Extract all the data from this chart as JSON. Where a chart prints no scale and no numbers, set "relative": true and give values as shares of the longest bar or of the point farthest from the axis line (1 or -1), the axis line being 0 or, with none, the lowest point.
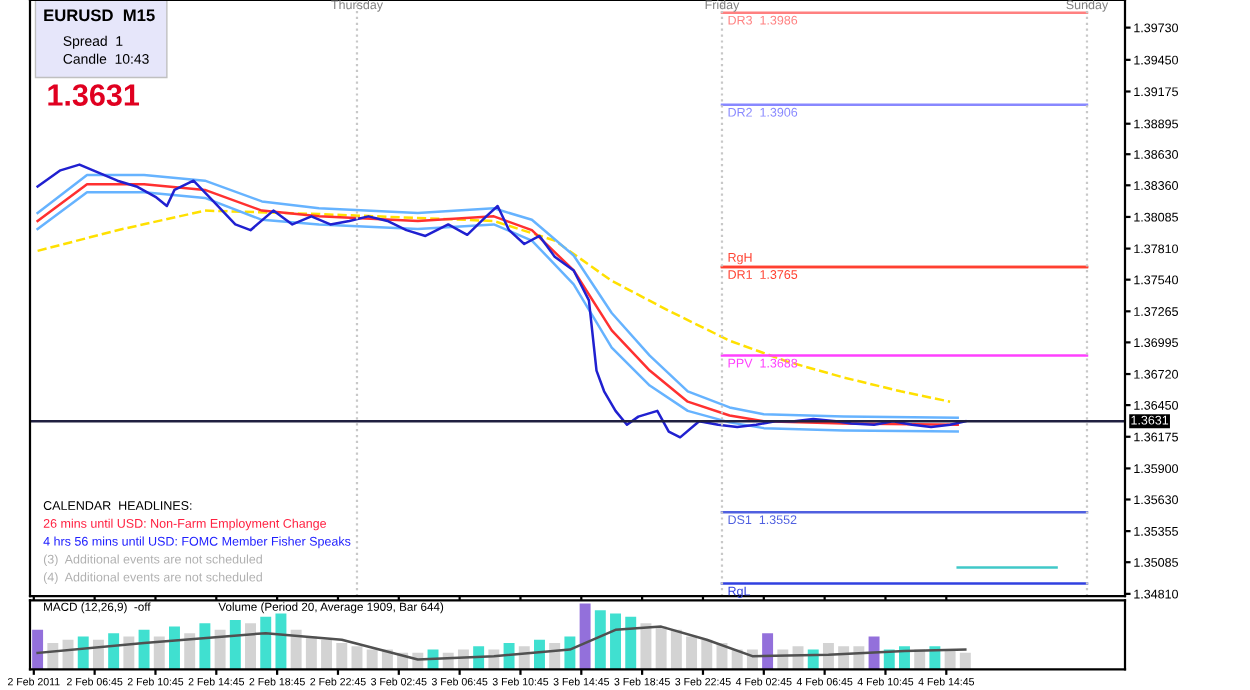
{
  "chart_data": [
    {
      "type": "line",
      "title": "EURUSD  M15",
      "annotations": [
        "Spread  1",
        "Candle  10:43",
        "1.3631",
        "CALENDAR  HEADLINES:",
        "26 mins until USD: Non-Farm Employment Change",
        "4 hrs 56 mins until USD: FOMC Member Fisher Speaks",
        "(3)  Additional events are not scheduled",
        "(4)  Additional events are not scheduled"
      ],
      "xlim": [
        "2011-02-02T02:30",
        "2011-02-05T02:30"
      ],
      "ylim": [
        1.3479,
        1.3997
      ],
      "tick_labels": "y",
      "grid": false,
      "legend": false,
      "xticks": [
        {
          "value": "2011-02-02T02:45",
          "label": null
        },
        {
          "value": "2011-02-02T06:45",
          "label": null
        },
        {
          "value": "2011-02-02T10:45",
          "label": null
        },
        {
          "value": "2011-02-02T14:45",
          "label": null
        },
        {
          "value": "2011-02-02T18:45",
          "label": null
        },
        {
          "value": "2011-02-02T22:45",
          "label": null
        },
        {
          "value": "2011-02-03T02:45",
          "label": null
        },
        {
          "value": "2011-02-03T06:45",
          "label": null
        },
        {
          "value": "2011-02-03T10:45",
          "label": null
        },
        {
          "value": "2011-02-03T14:45",
          "label": null
        },
        {
          "value": "2011-02-03T18:45",
          "label": null
        },
        {
          "value": "2011-02-03T22:45",
          "label": null
        },
        {
          "value": "2011-02-04T02:45",
          "label": null
        },
        {
          "value": "2011-02-04T06:45",
          "label": null
        },
        {
          "value": "2011-02-04T10:45",
          "label": null
        },
        {
          "value": "2011-02-04T14:45",
          "label": null
        }
      ],
      "yticks": [
        {
          "value": 1.3973,
          "label": "1.39730"
        },
        {
          "value": 1.3945,
          "label": "1.39450"
        },
        {
          "value": 1.39175,
          "label": "1.39175"
        },
        {
          "value": 1.38895,
          "label": "1.38895"
        },
        {
          "value": 1.3863,
          "label": "1.38630"
        },
        {
          "value": 1.3836,
          "label": "1.38360"
        },
        {
          "value": 1.38085,
          "label": "1.38085"
        },
        {
          "value": 1.3781,
          "label": "1.37810"
        },
        {
          "value": 1.3754,
          "label": "1.37540"
        },
        {
          "value": 1.37265,
          "label": "1.37265"
        },
        {
          "value": 1.36995,
          "label": "1.36995"
        },
        {
          "value": 1.3672,
          "label": "1.36720"
        },
        {
          "value": 1.3645,
          "label": "1.36450"
        },
        {
          "value": 1.36175,
          "label": "1.36175"
        },
        {
          "value": 1.359,
          "label": "1.35900"
        },
        {
          "value": 1.3563,
          "label": "1.35630"
        },
        {
          "value": 1.35355,
          "label": "1.35355"
        },
        {
          "value": 1.35085,
          "label": "1.35085"
        },
        {
          "value": 1.3481,
          "label": "1.34810"
        }
      ],
      "ref_lines": [
        {
          "axis": "x",
          "value": "2011-02-03T00:00",
          "label": "Thursday",
          "color": "#c8c8c8",
          "line_style": "dotted"
        },
        {
          "axis": "x",
          "value": "2011-02-04T00:00",
          "label": "Friday",
          "color": "#c8c8c8",
          "line_style": "dotted"
        },
        {
          "axis": "x",
          "value": "2011-02-05T00:00",
          "label": "Sunday",
          "color": "#c8c8c8",
          "line_style": "dotted"
        },
        {
          "axis": "y",
          "value": 1.3631,
          "label": "1.3631",
          "color": "#202040",
          "line_style": "solid"
        }
      ],
      "series": [
        {
          "color": "#ffe000",
          "line_style": "dashed",
          "x": [
            "2011-02-02T03:00",
            "2011-02-02T08:15",
            "2011-02-02T14:00",
            "2011-02-02T21:30",
            "2011-02-03T09:00",
            "2011-02-03T13:00",
            "2011-02-03T16:45",
            "2011-02-03T20:30",
            "2011-02-04T00:30",
            "2011-02-04T04:15",
            "2011-02-04T08:00",
            "2011-02-04T11:45",
            "2011-02-04T15:00"
          ],
          "values": [
            1.3779,
            1.3797,
            1.3814,
            1.3811,
            1.3805,
            1.3788,
            1.3753,
            1.3727,
            1.3701,
            1.3683,
            1.3669,
            1.3657,
            1.3648
          ]
        },
        {
          "color": "#66b3ff",
          "x": [
            "2011-02-02T03:00",
            "2011-02-02T06:15",
            "2011-02-02T10:00",
            "2011-02-02T14:00",
            "2011-02-02T17:45",
            "2011-02-02T21:30",
            "2011-02-03T04:00",
            "2011-02-03T09:00",
            "2011-02-03T11:30",
            "2011-02-03T14:15",
            "2011-02-03T16:45",
            "2011-02-03T19:15",
            "2011-02-03T21:45",
            "2011-02-04T00:30",
            "2011-02-04T02:45",
            "2011-02-04T08:00",
            "2011-02-04T15:30"
          ],
          "values": [
            1.3812,
            1.3845,
            1.3845,
            1.384,
            1.3822,
            1.3816,
            1.3812,
            1.3816,
            1.3806,
            1.3775,
            1.3725,
            1.3688,
            1.3657,
            1.3643,
            1.3637,
            1.3635,
            1.3634
          ]
        },
        {
          "color": "#66b3ff",
          "x": [
            "2011-02-02T03:00",
            "2011-02-02T06:15",
            "2011-02-02T10:00",
            "2011-02-02T14:00",
            "2011-02-02T17:45",
            "2011-02-02T21:30",
            "2011-02-03T04:00",
            "2011-02-03T09:00",
            "2011-02-03T11:30",
            "2011-02-03T14:15",
            "2011-02-03T16:45",
            "2011-02-03T19:15",
            "2011-02-03T21:45",
            "2011-02-04T00:30",
            "2011-02-04T02:45",
            "2011-02-04T08:00",
            "2011-02-04T15:30"
          ],
          "values": [
            1.3798,
            1.383,
            1.383,
            1.3825,
            1.3806,
            1.3802,
            1.3798,
            1.3802,
            1.3788,
            1.375,
            1.3695,
            1.3662,
            1.364,
            1.363,
            1.3625,
            1.3623,
            1.3622
          ]
        },
        {
          "color": "#ff3030",
          "x": [
            "2011-02-02T03:00",
            "2011-02-02T06:15",
            "2011-02-02T10:00",
            "2011-02-02T14:00",
            "2011-02-02T17:45",
            "2011-02-02T21:30",
            "2011-02-03T04:00",
            "2011-02-03T09:00",
            "2011-02-03T11:30",
            "2011-02-03T14:15",
            "2011-02-03T16:45",
            "2011-02-03T19:15",
            "2011-02-03T21:45",
            "2011-02-04T00:30",
            "2011-02-04T02:45",
            "2011-02-04T08:00",
            "2011-02-04T15:30"
          ],
          "values": [
            1.3805,
            1.3837,
            1.3837,
            1.3832,
            1.3814,
            1.3809,
            1.3805,
            1.3809,
            1.3797,
            1.3762,
            1.371,
            1.3675,
            1.3648,
            1.3636,
            1.3631,
            1.3629,
            1.3628
          ]
        },
        {
          "color": "#2020d0",
          "x": [
            "2011-02-02T03:00",
            "2011-02-02T04:30",
            "2011-02-02T05:45",
            "2011-02-02T07:00",
            "2011-02-02T08:15",
            "2011-02-02T09:30",
            "2011-02-02T10:45",
            "2011-02-02T11:30",
            "2011-02-02T12:00",
            "2011-02-02T13:15",
            "2011-02-02T14:30",
            "2011-02-02T16:00",
            "2011-02-02T17:00",
            "2011-02-02T18:30",
            "2011-02-02T19:45",
            "2011-02-02T21:00",
            "2011-02-02T22:15",
            "2011-02-02T23:30",
            "2011-02-03T00:45",
            "2011-02-03T02:00",
            "2011-02-03T03:15",
            "2011-02-03T04:30",
            "2011-02-03T06:00",
            "2011-02-03T07:15",
            "2011-02-03T08:30",
            "2011-02-03T09:15",
            "2011-02-03T10:00",
            "2011-02-03T11:00",
            "2011-02-03T12:00",
            "2011-02-03T13:00",
            "2011-02-03T14:15",
            "2011-02-03T15:15",
            "2011-02-03T15:45",
            "2011-02-03T16:15",
            "2011-02-03T17:00",
            "2011-02-03T17:45",
            "2011-02-03T18:30",
            "2011-02-03T19:45",
            "2011-02-03T20:30",
            "2011-02-03T21:15",
            "2011-02-03T22:30",
            "2011-02-03T23:45",
            "2011-02-04T01:00",
            "2011-02-04T02:15",
            "2011-02-04T03:30",
            "2011-02-04T04:45",
            "2011-02-04T06:00",
            "2011-02-04T07:30",
            "2011-02-04T08:30",
            "2011-02-04T10:00",
            "2011-02-04T11:15",
            "2011-02-04T12:30",
            "2011-02-04T13:45",
            "2011-02-04T15:00",
            "2011-02-04T16:00"
          ],
          "values": [
            1.3835,
            1.3849,
            1.3854,
            1.3847,
            1.384,
            1.3835,
            1.3826,
            1.3818,
            1.3832,
            1.384,
            1.3823,
            1.3802,
            1.3797,
            1.3814,
            1.3802,
            1.3809,
            1.3802,
            1.3805,
            1.3809,
            1.3805,
            1.3797,
            1.3792,
            1.3802,
            1.3793,
            1.3809,
            1.3818,
            1.3797,
            1.3785,
            1.3792,
            1.3774,
            1.3762,
            1.3736,
            1.3675,
            1.3657,
            1.364,
            1.3628,
            1.3635,
            1.364,
            1.3622,
            1.3617,
            1.3631,
            1.3628,
            1.3626,
            1.3628,
            1.3631,
            1.3631,
            1.3633,
            1.3631,
            1.3629,
            1.3628,
            1.3631,
            1.3628,
            1.3626,
            1.3628,
            1.3631
          ]
        },
        {
          "name": "DR3  1.3986",
          "color": "#ff8080",
          "x": [
            "2011-02-04T00:00",
            "2011-02-05T00:00"
          ],
          "values": [
            1.3986,
            1.3986
          ]
        },
        {
          "name": "DR2  1.3906",
          "color": "#8888ff",
          "x": [
            "2011-02-04T00:00",
            "2011-02-05T00:00"
          ],
          "values": [
            1.3906,
            1.3906
          ]
        },
        {
          "name": "DR1  1.3765",
          "color": "#ff4030",
          "x": [
            "2011-02-04T00:00",
            "2011-02-05T00:00"
          ],
          "values": [
            1.3765,
            1.3765
          ]
        },
        {
          "name": "RgH",
          "color": "#ff4030",
          "x": [
            "2011-02-04T00:00",
            "2011-02-05T00:00"
          ],
          "values": [
            1.3765,
            1.3765
          ]
        },
        {
          "name": "PPV  1.3688",
          "color": "#ff40ff",
          "x": [
            "2011-02-04T00:00",
            "2011-02-05T00:00"
          ],
          "values": [
            1.3688,
            1.3688
          ]
        },
        {
          "name": "DS1  1.3552",
          "color": "#5060e0",
          "x": [
            "2011-02-04T00:00",
            "2011-02-05T00:00"
          ],
          "values": [
            1.3552,
            1.3552
          ]
        },
        {
          "color": "#40c8c8",
          "x": [
            "2011-02-04T15:30",
            "2011-02-04T22:00"
          ],
          "values": [
            1.3504,
            1.3504
          ]
        },
        {
          "name": "RgL",
          "color": "#3040e0",
          "x": [
            "2011-02-04T00:00",
            "2011-02-05T00:00"
          ],
          "values": [
            1.349,
            1.349
          ]
        }
      ]
    },
    {
      "type": "bar",
      "relative": true,
      "tick_labels": "x",
      "legend": false,
      "grid": false,
      "annotations": [
        "MACD (12,26,9)  -off",
        "Volume (Period 20, Average 1909, Bar 644)"
      ],
      "xlim": [
        "2011-02-02T02:30",
        "2011-02-05T02:30"
      ],
      "xticks": [
        {
          "value": "2011-02-02T02:45",
          "label": "2 Feb 2011"
        },
        {
          "value": "2011-02-02T06:45",
          "label": "2 Feb 06:45"
        },
        {
          "value": "2011-02-02T10:45",
          "label": "2 Feb 10:45"
        },
        {
          "value": "2011-02-02T14:45",
          "label": "2 Feb 14:45"
        },
        {
          "value": "2011-02-02T18:45",
          "label": "2 Feb 18:45"
        },
        {
          "value": "2011-02-02T22:45",
          "label": "2 Feb 22:45"
        },
        {
          "value": "2011-02-03T02:45",
          "label": "3 Feb 02:45"
        },
        {
          "value": "2011-02-03T06:45",
          "label": "3 Feb 06:45"
        },
        {
          "value": "2011-02-03T10:45",
          "label": "3 Feb 10:45"
        },
        {
          "value": "2011-02-03T14:45",
          "label": "3 Feb 14:45"
        },
        {
          "value": "2011-02-03T18:45",
          "label": "3 Feb 18:45"
        },
        {
          "value": "2011-02-03T22:45",
          "label": "3 Feb 22:45"
        },
        {
          "value": "2011-02-04T02:45",
          "label": "4 Feb 02:45"
        },
        {
          "value": "2011-02-04T06:45",
          "label": "4 Feb 06:45"
        },
        {
          "value": "2011-02-04T10:45",
          "label": "4 Feb 10:45"
        },
        {
          "value": "2011-02-04T14:45",
          "label": "4 Feb 14:45"
        }
      ],
      "series": [
        {
          "x": [
            "2011-02-02T03:00",
            "2011-02-02T04:00",
            "2011-02-02T05:00",
            "2011-02-02T06:00",
            "2011-02-02T07:00",
            "2011-02-02T08:00",
            "2011-02-02T09:00",
            "2011-02-02T10:00",
            "2011-02-02T11:00",
            "2011-02-02T12:00",
            "2011-02-02T13:00",
            "2011-02-02T14:00",
            "2011-02-02T15:00",
            "2011-02-02T16:00",
            "2011-02-02T17:00",
            "2011-02-02T18:00",
            "2011-02-02T19:00",
            "2011-02-02T20:00",
            "2011-02-02T21:00",
            "2011-02-02T22:00",
            "2011-02-02T23:00",
            "2011-02-03T00:00",
            "2011-02-03T01:00",
            "2011-02-03T02:00",
            "2011-02-03T03:00",
            "2011-02-03T04:00",
            "2011-02-03T05:00",
            "2011-02-03T06:00",
            "2011-02-03T07:00",
            "2011-02-03T08:00",
            "2011-02-03T09:00",
            "2011-02-03T10:00",
            "2011-02-03T11:00",
            "2011-02-03T12:00",
            "2011-02-03T13:00",
            "2011-02-03T14:00",
            "2011-02-03T15:00",
            "2011-02-03T16:00",
            "2011-02-03T17:00",
            "2011-02-03T18:00",
            "2011-02-03T19:00",
            "2011-02-03T20:00",
            "2011-02-03T21:00",
            "2011-02-03T22:00",
            "2011-02-03T23:00",
            "2011-02-04T00:00",
            "2011-02-04T01:00",
            "2011-02-04T02:00",
            "2011-02-04T03:00",
            "2011-02-04T04:00",
            "2011-02-04T05:00",
            "2011-02-04T06:00",
            "2011-02-04T07:00",
            "2011-02-04T08:00",
            "2011-02-04T09:00",
            "2011-02-04T10:00",
            "2011-02-04T11:00",
            "2011-02-04T12:00",
            "2011-02-04T13:00",
            "2011-02-04T14:00",
            "2011-02-04T15:00",
            "2011-02-04T16:00"
          ],
          "values": [
            0.6,
            0.4,
            0.45,
            0.5,
            0.45,
            0.55,
            0.5,
            0.6,
            0.5,
            0.65,
            0.55,
            0.7,
            0.6,
            0.75,
            0.7,
            0.8,
            0.85,
            0.6,
            0.5,
            0.45,
            0.4,
            0.35,
            0.3,
            0.3,
            0.25,
            0.25,
            0.3,
            0.25,
            0.3,
            0.35,
            0.3,
            0.4,
            0.35,
            0.45,
            0.4,
            0.5,
            1.0,
            0.9,
            0.85,
            0.8,
            0.7,
            0.65,
            0.6,
            0.5,
            0.45,
            0.4,
            0.3,
            0.3,
            0.55,
            0.3,
            0.35,
            0.3,
            0.4,
            0.35,
            0.35,
            0.5,
            0.3,
            0.35,
            0.3,
            0.35,
            0.3,
            0.25
          ],
          "colors": [
            "#9370db",
            "#d3d3d3",
            "#d3d3d3",
            "#40e0d0",
            "#d3d3d3",
            "#40e0d0",
            "#d3d3d3",
            "#40e0d0",
            "#d3d3d3",
            "#40e0d0",
            "#d3d3d3",
            "#40e0d0",
            "#d3d3d3",
            "#40e0d0",
            "#d3d3d3",
            "#40e0d0",
            "#40e0d0",
            "#d3d3d3",
            "#d3d3d3",
            "#d3d3d3",
            "#d3d3d3",
            "#d3d3d3",
            "#d3d3d3",
            "#d3d3d3",
            "#d3d3d3",
            "#d3d3d3",
            "#40e0d0",
            "#d3d3d3",
            "#d3d3d3",
            "#40e0d0",
            "#d3d3d3",
            "#40e0d0",
            "#d3d3d3",
            "#40e0d0",
            "#d3d3d3",
            "#40e0d0",
            "#9370db",
            "#40e0d0",
            "#40e0d0",
            "#40e0d0",
            "#d3d3d3",
            "#d3d3d3",
            "#d3d3d3",
            "#d3d3d3",
            "#d3d3d3",
            "#d3d3d3",
            "#d3d3d3",
            "#d3d3d3",
            "#9370db",
            "#d3d3d3",
            "#d3d3d3",
            "#40e0d0",
            "#d3d3d3",
            "#d3d3d3",
            "#d3d3d3",
            "#9370db",
            "#40e0d0",
            "#40e0d0",
            "#d3d3d3",
            "#40e0d0",
            "#d3d3d3",
            "#d3d3d3"
          ]
        },
        {
          "type": "line",
          "color": "#505050",
          "x": [
            "2011-02-02T03:00",
            "2011-02-02T10:00",
            "2011-02-02T18:00",
            "2011-02-02T23:00",
            "2011-02-03T04:00",
            "2011-02-03T09:00",
            "2011-02-03T14:00",
            "2011-02-03T17:00",
            "2011-02-03T20:00",
            "2011-02-03T23:00",
            "2011-02-04T02:00",
            "2011-02-04T07:00",
            "2011-02-04T12:00",
            "2011-02-04T16:00"
          ],
          "values": [
            0.25,
            0.4,
            0.55,
            0.45,
            0.15,
            0.2,
            0.3,
            0.6,
            0.65,
            0.45,
            0.2,
            0.22,
            0.28,
            0.3
          ]
        }
      ]
    }
  ]
}
